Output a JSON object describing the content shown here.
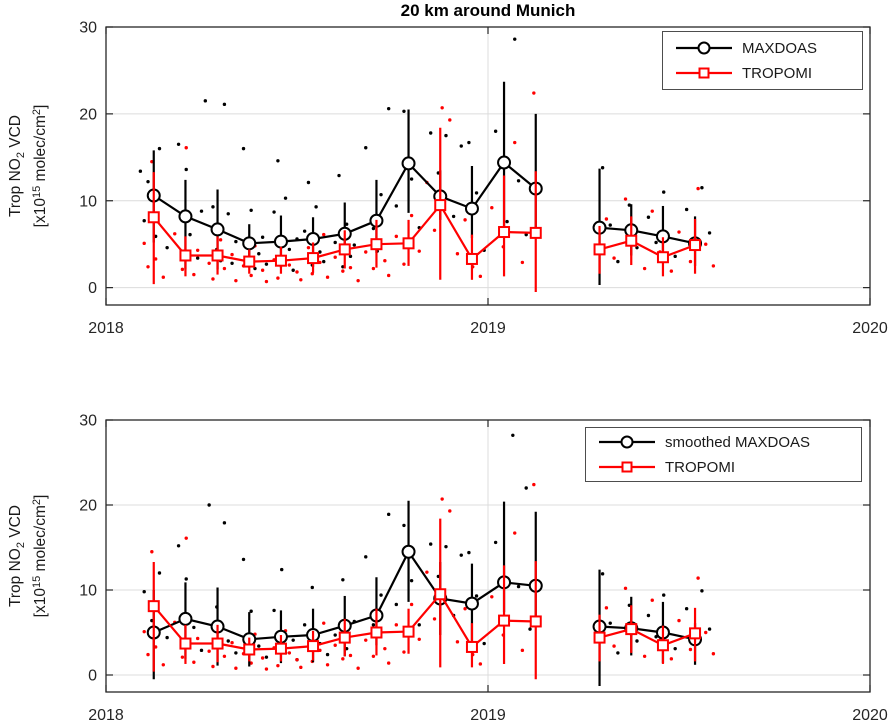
{
  "chart_data": {
    "type": "line",
    "title": "20 km around Munich",
    "x_axis": {
      "ticks": [
        "2018",
        "2019",
        "2020"
      ],
      "tick_values": [
        2018,
        2019,
        2020
      ],
      "xlim": [
        2018,
        2020
      ],
      "grid": true
    },
    "y_axis": {
      "ticks": [
        "0",
        "10",
        "20",
        "30"
      ],
      "tick_values": [
        0,
        10,
        20,
        30
      ],
      "ylim": [
        -2,
        30
      ],
      "grid": true
    },
    "ylabel_line1_parts": [
      "Trop NO",
      {
        "sub": "2"
      },
      " VCD"
    ],
    "ylabel_line2_parts": [
      "[x10",
      {
        "sup": "15"
      },
      " molec/cm",
      {
        "sup": "2"
      },
      "]"
    ],
    "colors": {
      "maxdoas": "#000000",
      "tropomi": "#ff0000",
      "grid": "#dcdcdc",
      "axis": "#262626"
    },
    "months_x": [
      2018.125,
      2018.208,
      2018.292,
      2018.375,
      2018.458,
      2018.542,
      2018.625,
      2018.708,
      2018.792,
      2018.875,
      2018.958,
      2019.042,
      2019.125,
      2019.292,
      2019.375,
      2019.458,
      2019.542
    ],
    "tropomi": {
      "name": "TROPOMI",
      "y": [
        8.1,
        3.7,
        3.7,
        3.0,
        3.1,
        3.4,
        4.4,
        5.0,
        5.1,
        9.5,
        3.3,
        6.4,
        6.3,
        4.4,
        5.4,
        3.5,
        4.9
      ],
      "lo": [
        0.4,
        1.3,
        1.5,
        1.6,
        1.6,
        1.7,
        2.2,
        2.3,
        2.5,
        0.9,
        0.9,
        1.3,
        -0.5,
        1.6,
        2.6,
        1.3,
        1.6
      ],
      "hi": [
        13.3,
        5.9,
        5.9,
        4.4,
        4.7,
        5.2,
        6.6,
        7.8,
        7.8,
        18.4,
        6.1,
        12.9,
        13.4,
        7.1,
        8.2,
        5.8,
        7.9
      ],
      "scatter": [
        [
          2018.1,
          5.1
        ],
        [
          2018.11,
          2.4
        ],
        [
          2018.12,
          14.5
        ],
        [
          2018.13,
          3.3
        ],
        [
          2018.15,
          1.2
        ],
        [
          2018.18,
          6.2
        ],
        [
          2018.2,
          2.1
        ],
        [
          2018.21,
          16.1
        ],
        [
          2018.23,
          1.5
        ],
        [
          2018.24,
          4.3
        ],
        [
          2018.27,
          2.8
        ],
        [
          2018.28,
          1.0
        ],
        [
          2018.3,
          5.5
        ],
        [
          2018.31,
          2.2
        ],
        [
          2018.33,
          3.8
        ],
        [
          2018.34,
          0.8
        ],
        [
          2018.36,
          2.5
        ],
        [
          2018.38,
          1.4
        ],
        [
          2018.39,
          4.8
        ],
        [
          2018.41,
          2.0
        ],
        [
          2018.42,
          0.7
        ],
        [
          2018.44,
          3.2
        ],
        [
          2018.45,
          1.1
        ],
        [
          2018.47,
          5.2
        ],
        [
          2018.48,
          2.6
        ],
        [
          2018.5,
          1.8
        ],
        [
          2018.51,
          0.9
        ],
        [
          2018.53,
          4.6
        ],
        [
          2018.54,
          1.6
        ],
        [
          2018.56,
          2.9
        ],
        [
          2018.57,
          6.1
        ],
        [
          2018.58,
          1.2
        ],
        [
          2018.6,
          3.5
        ],
        [
          2018.62,
          1.9
        ],
        [
          2018.63,
          5.8
        ],
        [
          2018.64,
          2.3
        ],
        [
          2018.66,
          0.8
        ],
        [
          2018.68,
          4.1
        ],
        [
          2018.7,
          2.2
        ],
        [
          2018.71,
          7.4
        ],
        [
          2018.73,
          3.1
        ],
        [
          2018.74,
          1.4
        ],
        [
          2018.76,
          5.9
        ],
        [
          2018.78,
          2.7
        ],
        [
          2018.8,
          8.3
        ],
        [
          2018.82,
          4.2
        ],
        [
          2018.84,
          12.1
        ],
        [
          2018.86,
          6.6
        ],
        [
          2018.88,
          20.7
        ],
        [
          2018.9,
          19.3
        ],
        [
          2018.92,
          3.9
        ],
        [
          2018.94,
          7.8
        ],
        [
          2018.96,
          2.4
        ],
        [
          2018.98,
          1.3
        ],
        [
          2019.01,
          9.2
        ],
        [
          2019.04,
          4.7
        ],
        [
          2019.07,
          16.7
        ],
        [
          2019.09,
          2.9
        ],
        [
          2019.12,
          22.4
        ],
        [
          2019.31,
          7.9
        ],
        [
          2019.33,
          3.4
        ],
        [
          2019.36,
          10.2
        ],
        [
          2019.38,
          5.5
        ],
        [
          2019.41,
          2.2
        ],
        [
          2019.43,
          8.8
        ],
        [
          2019.45,
          4.1
        ],
        [
          2019.48,
          1.9
        ],
        [
          2019.5,
          6.4
        ],
        [
          2019.53,
          3.0
        ],
        [
          2019.55,
          11.4
        ],
        [
          2019.57,
          5.0
        ],
        [
          2019.59,
          2.5
        ]
      ]
    },
    "panels": [
      {
        "name": "monthly",
        "legend": [
          "MAXDOAS",
          "TROPOMI"
        ],
        "black_series": {
          "name": "MAXDOAS",
          "y": [
            10.6,
            8.2,
            6.7,
            5.1,
            5.3,
            5.6,
            6.2,
            7.7,
            14.3,
            10.5,
            9.1,
            14.4,
            11.4,
            6.9,
            6.6,
            5.9,
            5.1
          ],
          "lo": [
            5.2,
            2.1,
            2.1,
            2.3,
            2.3,
            2.4,
            3.8,
            4.0,
            8.6,
            7.8,
            5.7,
            7.0,
            6.1,
            0.3,
            3.7,
            2.8,
            2.5
          ],
          "hi": [
            15.8,
            12.4,
            11.3,
            7.3,
            8.3,
            8.1,
            9.8,
            12.4,
            20.5,
            13.5,
            14.0,
            23.7,
            20.0,
            13.7,
            9.6,
            9.4,
            8.2
          ],
          "scatter": [
            [
              2018.09,
              13.4
            ],
            [
              2018.1,
              7.7
            ],
            [
              2018.11,
              12.2
            ],
            [
              2018.13,
              5.9
            ],
            [
              2018.14,
              16.0
            ],
            [
              2018.16,
              4.6
            ],
            [
              2018.19,
              16.5
            ],
            [
              2018.21,
              13.6
            ],
            [
              2018.22,
              6.1
            ],
            [
              2018.24,
              3.4
            ],
            [
              2018.25,
              8.8
            ],
            [
              2018.26,
              21.5
            ],
            [
              2018.28,
              9.3
            ],
            [
              2018.29,
              4.4
            ],
            [
              2018.3,
              3.1
            ],
            [
              2018.31,
              21.1
            ],
            [
              2018.32,
              8.5
            ],
            [
              2018.33,
              2.8
            ],
            [
              2018.34,
              5.3
            ],
            [
              2018.36,
              16.0
            ],
            [
              2018.37,
              4.6
            ],
            [
              2018.38,
              8.9
            ],
            [
              2018.39,
              2.2
            ],
            [
              2018.4,
              3.9
            ],
            [
              2018.41,
              5.8
            ],
            [
              2018.42,
              2.7
            ],
            [
              2018.44,
              8.7
            ],
            [
              2018.45,
              14.6
            ],
            [
              2018.46,
              2.9
            ],
            [
              2018.47,
              10.3
            ],
            [
              2018.48,
              4.4
            ],
            [
              2018.49,
              2.0
            ],
            [
              2018.5,
              5.6
            ],
            [
              2018.52,
              6.5
            ],
            [
              2018.53,
              12.1
            ],
            [
              2018.54,
              2.6
            ],
            [
              2018.55,
              9.3
            ],
            [
              2018.56,
              4.1
            ],
            [
              2018.57,
              3.0
            ],
            [
              2018.6,
              5.2
            ],
            [
              2018.61,
              12.9
            ],
            [
              2018.62,
              2.4
            ],
            [
              2018.63,
              7.3
            ],
            [
              2018.64,
              3.6
            ],
            [
              2018.65,
              4.9
            ],
            [
              2018.68,
              16.1
            ],
            [
              2018.7,
              6.8
            ],
            [
              2018.71,
              4.2
            ],
            [
              2018.72,
              10.7
            ],
            [
              2018.74,
              20.6
            ],
            [
              2018.76,
              9.4
            ],
            [
              2018.78,
              20.3
            ],
            [
              2018.8,
              12.5
            ],
            [
              2018.82,
              6.9
            ],
            [
              2018.85,
              17.8
            ],
            [
              2018.87,
              13.2
            ],
            [
              2018.89,
              17.5
            ],
            [
              2018.91,
              8.2
            ],
            [
              2018.93,
              16.3
            ],
            [
              2018.95,
              16.7
            ],
            [
              2018.97,
              10.9
            ],
            [
              2018.99,
              4.3
            ],
            [
              2019.02,
              18.0
            ],
            [
              2019.05,
              7.6
            ],
            [
              2019.07,
              28.6
            ],
            [
              2019.08,
              12.3
            ],
            [
              2019.1,
              6.1
            ],
            [
              2019.3,
              13.8
            ],
            [
              2019.32,
              7.2
            ],
            [
              2019.34,
              3.0
            ],
            [
              2019.37,
              9.5
            ],
            [
              2019.39,
              4.6
            ],
            [
              2019.42,
              8.1
            ],
            [
              2019.44,
              5.2
            ],
            [
              2019.46,
              11.0
            ],
            [
              2019.49,
              3.6
            ],
            [
              2019.52,
              9.0
            ],
            [
              2019.54,
              4.4
            ],
            [
              2019.56,
              11.5
            ],
            [
              2019.58,
              6.3
            ]
          ]
        }
      },
      {
        "name": "smoothed",
        "legend": [
          "smoothed MAXDOAS",
          "TROPOMI"
        ],
        "black_series": {
          "name": "smoothed MAXDOAS",
          "y": [
            5.0,
            6.6,
            5.7,
            4.2,
            4.5,
            4.7,
            5.8,
            7.0,
            14.5,
            9.0,
            8.4,
            10.9,
            10.5,
            5.7,
            5.5,
            5.0,
            4.2
          ],
          "lo": [
            -0.5,
            1.9,
            1.1,
            1.0,
            1.4,
            1.5,
            2.2,
            3.5,
            8.6,
            4.7,
            3.9,
            7.4,
            6.3,
            -1.3,
            2.3,
            1.4,
            1.2
          ],
          "hi": [
            10.0,
            10.9,
            10.3,
            7.4,
            7.6,
            7.8,
            9.3,
            11.5,
            20.5,
            13.3,
            13.1,
            20.4,
            19.2,
            12.4,
            9.2,
            8.6,
            6.1
          ],
          "scatter": [
            [
              2018.1,
              9.8
            ],
            [
              2018.12,
              6.4
            ],
            [
              2018.14,
              12.0
            ],
            [
              2018.16,
              4.4
            ],
            [
              2018.19,
              15.2
            ],
            [
              2018.21,
              11.3
            ],
            [
              2018.23,
              5.6
            ],
            [
              2018.25,
              2.9
            ],
            [
              2018.27,
              20.0
            ],
            [
              2018.29,
              8.0
            ],
            [
              2018.31,
              17.9
            ],
            [
              2018.32,
              4.0
            ],
            [
              2018.34,
              2.6
            ],
            [
              2018.36,
              13.6
            ],
            [
              2018.38,
              7.5
            ],
            [
              2018.4,
              3.4
            ],
            [
              2018.42,
              2.1
            ],
            [
              2018.44,
              7.6
            ],
            [
              2018.46,
              12.4
            ],
            [
              2018.47,
              2.6
            ],
            [
              2018.49,
              4.1
            ],
            [
              2018.5,
              1.8
            ],
            [
              2018.52,
              5.9
            ],
            [
              2018.54,
              10.3
            ],
            [
              2018.56,
              3.7
            ],
            [
              2018.58,
              2.4
            ],
            [
              2018.6,
              4.7
            ],
            [
              2018.62,
              11.2
            ],
            [
              2018.63,
              3.1
            ],
            [
              2018.65,
              6.3
            ],
            [
              2018.68,
              13.9
            ],
            [
              2018.7,
              5.9
            ],
            [
              2018.72,
              9.4
            ],
            [
              2018.74,
              18.9
            ],
            [
              2018.76,
              8.3
            ],
            [
              2018.78,
              17.6
            ],
            [
              2018.8,
              11.1
            ],
            [
              2018.82,
              5.9
            ],
            [
              2018.85,
              15.4
            ],
            [
              2018.87,
              11.6
            ],
            [
              2018.89,
              15.1
            ],
            [
              2018.91,
              7.0
            ],
            [
              2018.93,
              14.1
            ],
            [
              2018.95,
              14.4
            ],
            [
              2018.97,
              9.3
            ],
            [
              2018.99,
              3.7
            ],
            [
              2019.02,
              15.6
            ],
            [
              2019.05,
              6.6
            ],
            [
              2019.065,
              28.2
            ],
            [
              2019.08,
              10.4
            ],
            [
              2019.1,
              22.0
            ],
            [
              2019.11,
              5.4
            ],
            [
              2019.3,
              11.9
            ],
            [
              2019.32,
              6.1
            ],
            [
              2019.34,
              2.6
            ],
            [
              2019.37,
              8.2
            ],
            [
              2019.39,
              4.0
            ],
            [
              2019.42,
              7.0
            ],
            [
              2019.44,
              4.5
            ],
            [
              2019.46,
              9.4
            ],
            [
              2019.49,
              3.1
            ],
            [
              2019.52,
              7.8
            ],
            [
              2019.54,
              3.8
            ],
            [
              2019.56,
              9.9
            ],
            [
              2019.58,
              5.4
            ]
          ]
        }
      }
    ]
  }
}
